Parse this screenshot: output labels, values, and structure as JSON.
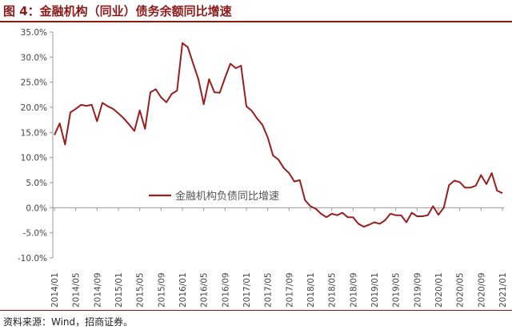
{
  "figure": {
    "title": "图 4：金融机构（同业）债务余额同比增速",
    "source": "资料来源：Wind，招商证券。"
  },
  "colors": {
    "accent": "#8b1a1a",
    "line": "#9b1c1c",
    "axis": "#999999",
    "text": "#444444"
  },
  "chart_data": {
    "type": "line",
    "title": "",
    "xlabel": "",
    "ylabel": "",
    "y_unit": "%",
    "ylim": [
      -10,
      35
    ],
    "yticks": [
      -10,
      -5,
      0,
      5,
      10,
      15,
      20,
      25,
      30,
      35
    ],
    "ytick_labels": [
      "-10.0%",
      "-5.0%",
      "0.0%",
      "5.0%",
      "10.0%",
      "15.0%",
      "20.0%",
      "25.0%",
      "30.0%",
      "35.0%"
    ],
    "xtick_labels": [
      "2014/01",
      "2014/05",
      "2014/09",
      "2015/01",
      "2015/05",
      "2015/09",
      "2016/01",
      "2016/05",
      "2016/09",
      "2017/01",
      "2017/05",
      "2017/09",
      "2018/01",
      "2018/05",
      "2018/09",
      "2019/01",
      "2019/05",
      "2019/09",
      "2020/01",
      "2020/05",
      "2020/09",
      "2021/01"
    ],
    "grid": false,
    "legend_position": "center",
    "series": [
      {
        "name": "金融机构负债同比增速",
        "start": "2014/01",
        "frequency": "monthly",
        "values": [
          14.5,
          16.8,
          12.6,
          19.0,
          19.7,
          20.5,
          20.3,
          20.5,
          17.2,
          20.9,
          20.2,
          19.7,
          18.8,
          17.8,
          16.6,
          15.3,
          19.4,
          15.7,
          23.0,
          23.6,
          22.0,
          21.0,
          22.7,
          23.3,
          32.8,
          32.0,
          28.8,
          25.6,
          20.6,
          25.6,
          23.0,
          22.9,
          25.9,
          28.7,
          27.8,
          28.3,
          20.2,
          19.3,
          17.8,
          16.5,
          14.0,
          10.4,
          9.6,
          7.9,
          6.9,
          5.2,
          5.5,
          1.5,
          0.3,
          -0.2,
          -1.2,
          -1.9,
          -1.2,
          -1.5,
          -1.0,
          -1.9,
          -1.9,
          -3.2,
          -3.8,
          -3.4,
          -2.9,
          -3.2,
          -2.5,
          -1.2,
          -1.5,
          -1.5,
          -2.9,
          -1.0,
          -1.7,
          -1.7,
          -1.5,
          0.3,
          -1.4,
          0.0,
          4.5,
          5.4,
          5.1,
          4.0,
          4.0,
          4.4,
          6.5,
          4.7,
          6.9,
          3.4,
          2.9
        ]
      }
    ]
  }
}
